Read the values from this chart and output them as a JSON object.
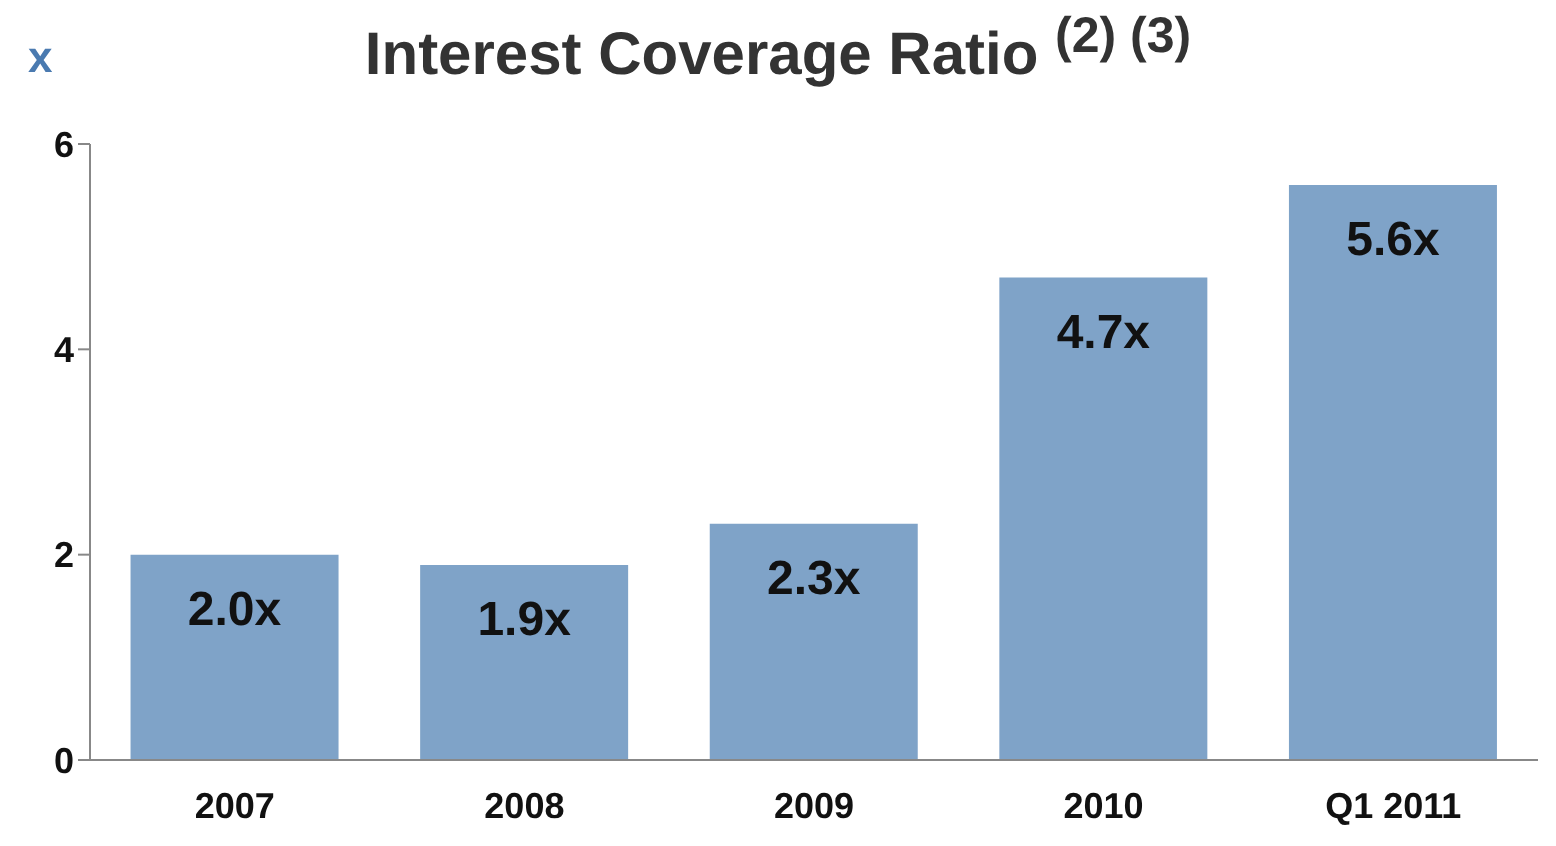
{
  "chart_data": {
    "type": "bar",
    "title": "Interest Coverage Ratio $^{(2) (3)}$",
    "ylabel": "x",
    "categories": [
      "2007",
      "2008",
      "2009",
      "2010",
      "Q1 2011"
    ],
    "values": [
      2.0,
      1.9,
      2.3,
      4.7,
      5.6
    ],
    "value_labels": [
      "2.0x",
      "1.9x",
      "2.3x",
      "4.7x",
      "5.6x"
    ],
    "color": "#7fa3c8",
    "ylim": [
      0,
      6
    ],
    "yticks": [
      0,
      2,
      4,
      6
    ],
    "grid": false,
    "legend": false
  }
}
